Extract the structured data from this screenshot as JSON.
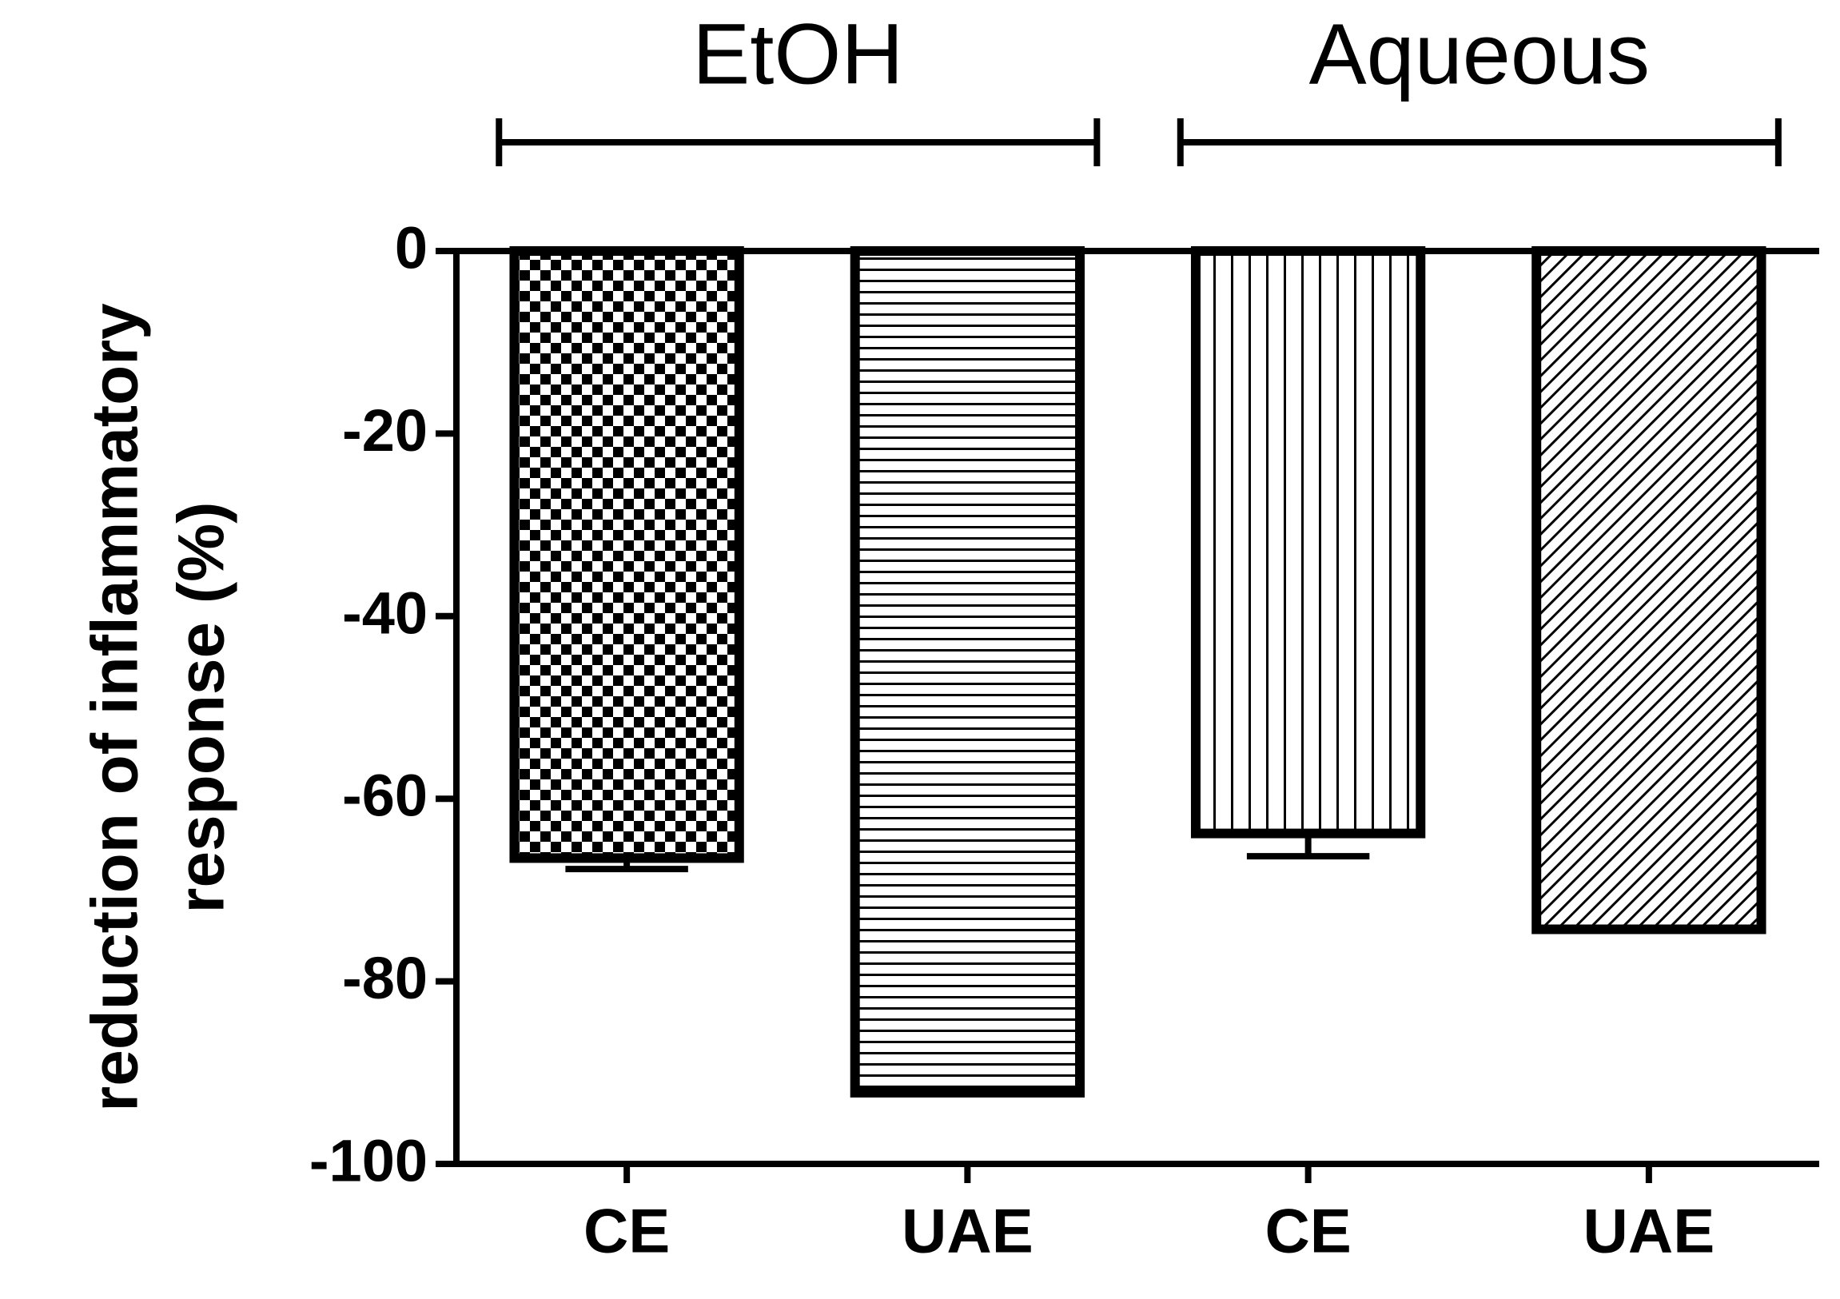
{
  "chart_data": {
    "type": "bar",
    "groups": [
      "EtOH",
      "Aqueous"
    ],
    "categories": [
      "CE",
      "UAE",
      "CE",
      "UAE"
    ],
    "values": [
      -66.5,
      -92.2,
      -63.8,
      -74.3
    ],
    "errors": [
      1.2,
      0,
      2.5,
      0
    ],
    "patterns": [
      "checker",
      "horizontal",
      "vertical",
      "diagonal"
    ],
    "color": "#000000",
    "ylabel": [
      "reduction of inflammatory",
      "response (%)"
    ],
    "ylim": [
      -100,
      0
    ],
    "yticks": [
      0,
      -20,
      -40,
      -60,
      -80,
      -100
    ]
  }
}
